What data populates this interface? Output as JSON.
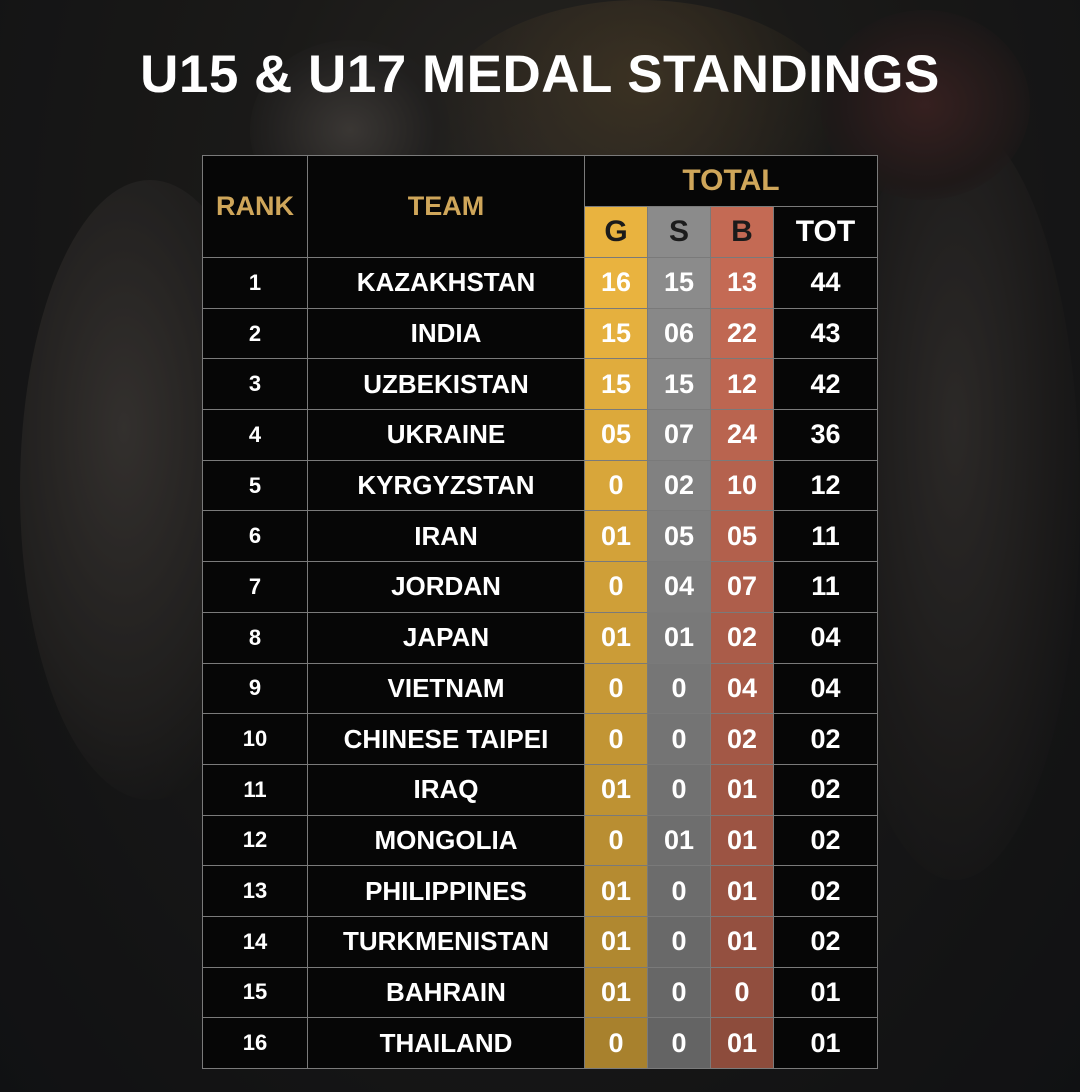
{
  "title": "U15 & U17 MEDAL STANDINGS",
  "headers": {
    "rank": "RANK",
    "team": "TEAM",
    "total": "TOTAL",
    "gold": "G",
    "silver": "S",
    "bronze": "B",
    "tot": "TOT"
  },
  "colors": {
    "gold": "#e9b33f",
    "silver": "#8b8b8b",
    "bronze": "#c46a54",
    "header_text": "#cfa65a"
  },
  "rows": [
    {
      "rank": "1",
      "team": "KAZAKHSTAN",
      "g": "16",
      "s": "15",
      "b": "13",
      "tot": "44"
    },
    {
      "rank": "2",
      "team": "INDIA",
      "g": "15",
      "s": "06",
      "b": "22",
      "tot": "43"
    },
    {
      "rank": "3",
      "team": "UZBEKISTAN",
      "g": "15",
      "s": "15",
      "b": "12",
      "tot": "42"
    },
    {
      "rank": "4",
      "team": "UKRAINE",
      "g": "05",
      "s": "07",
      "b": "24",
      "tot": "36"
    },
    {
      "rank": "5",
      "team": "KYRGYZSTAN",
      "g": "0",
      "s": "02",
      "b": "10",
      "tot": "12"
    },
    {
      "rank": "6",
      "team": "IRAN",
      "g": "01",
      "s": "05",
      "b": "05",
      "tot": "11"
    },
    {
      "rank": "7",
      "team": "JORDAN",
      "g": "0",
      "s": "04",
      "b": "07",
      "tot": "11"
    },
    {
      "rank": "8",
      "team": "JAPAN",
      "g": "01",
      "s": "01",
      "b": "02",
      "tot": "04"
    },
    {
      "rank": "9",
      "team": "VIETNAM",
      "g": "0",
      "s": "0",
      "b": "04",
      "tot": "04"
    },
    {
      "rank": "10",
      "team": "CHINESE TAIPEI",
      "g": "0",
      "s": "0",
      "b": "02",
      "tot": "02"
    },
    {
      "rank": "11",
      "team": "IRAQ",
      "g": "01",
      "s": "0",
      "b": "01",
      "tot": "02"
    },
    {
      "rank": "12",
      "team": "MONGOLIA",
      "g": "0",
      "s": "01",
      "b": "01",
      "tot": "02"
    },
    {
      "rank": "13",
      "team": "PHILIPPINES",
      "g": "01",
      "s": "0",
      "b": "01",
      "tot": "02"
    },
    {
      "rank": "14",
      "team": "TURKMENISTAN",
      "g": "01",
      "s": "0",
      "b": "01",
      "tot": "02"
    },
    {
      "rank": "15",
      "team": "BAHRAIN",
      "g": "01",
      "s": "0",
      "b": "0",
      "tot": "01"
    },
    {
      "rank": "16",
      "team": "THAILAND",
      "g": "0",
      "s": "0",
      "b": "01",
      "tot": "01"
    }
  ]
}
